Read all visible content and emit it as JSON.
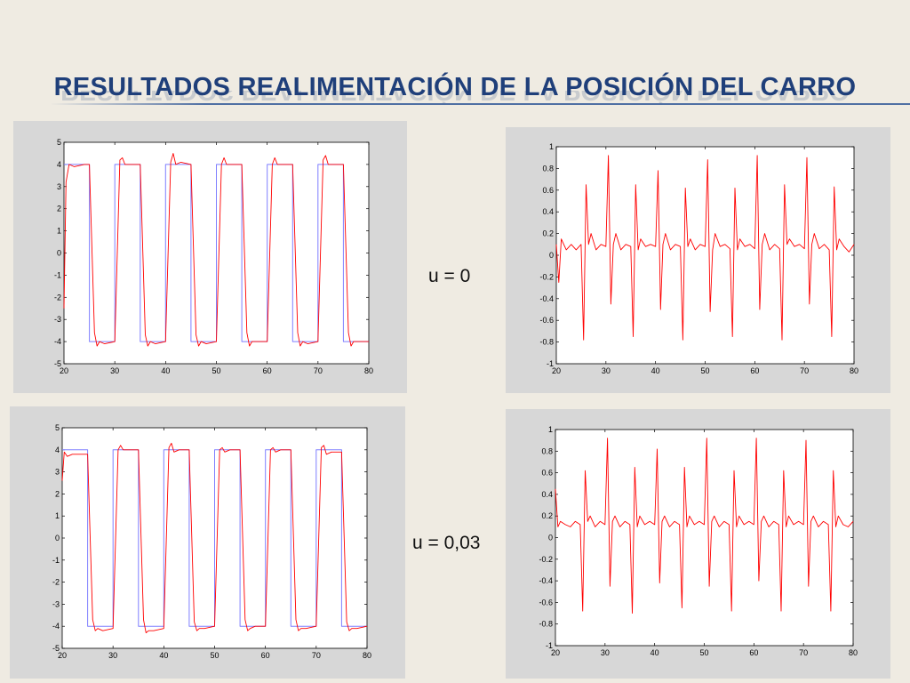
{
  "slide": {
    "title": "RESULTADOS REALIMENTACIÓN DE LA POSICIÓN DEL CARRO",
    "label_top": "u = 0",
    "label_bottom": "u = 0,03"
  },
  "colors": {
    "title": "#1f3f7a",
    "reference": "#7f7fff",
    "response": "#ff0000",
    "panel": "#d7d7d7"
  },
  "chart_data": [
    {
      "id": "pos-u0",
      "type": "line",
      "xlim": [
        20,
        80
      ],
      "ylim": [
        -5,
        5
      ],
      "xticks": [
        20,
        30,
        40,
        50,
        60,
        70,
        80
      ],
      "yticks": [
        5,
        4,
        3,
        2,
        1,
        0,
        -1,
        -2,
        -3,
        -4,
        -5
      ],
      "series": [
        {
          "kind": "reference",
          "color": "#7f7fff",
          "x": [
            20,
            25,
            25,
            30,
            30,
            35,
            35,
            40,
            40,
            45,
            45,
            50,
            50,
            55,
            55,
            60,
            60,
            65,
            65,
            70,
            70,
            75,
            75,
            80
          ],
          "y": [
            4,
            4,
            -4,
            -4,
            4,
            4,
            -4,
            -4,
            4,
            4,
            -4,
            -4,
            4,
            4,
            -4,
            -4,
            4,
            4,
            -4,
            -4,
            4,
            4,
            -4,
            -4
          ]
        },
        {
          "kind": "response",
          "color": "#ff0000",
          "x": [
            20,
            20.4,
            21,
            22,
            24,
            25,
            26,
            26.5,
            27,
            28,
            30,
            31,
            31.5,
            32,
            33,
            35,
            36,
            36.5,
            37,
            38,
            40,
            41,
            41.5,
            42,
            43,
            45,
            46,
            46.5,
            47,
            48,
            50,
            51,
            51.5,
            52,
            53,
            55,
            56,
            56.5,
            57,
            58,
            60,
            61,
            61.5,
            62,
            63,
            65,
            66,
            66.5,
            67,
            68,
            70,
            71,
            71.5,
            72,
            73,
            75,
            76,
            76.5,
            77,
            78,
            80
          ],
          "y": [
            -2.5,
            3.2,
            4,
            3.9,
            4,
            4,
            -3.6,
            -4.2,
            -4,
            -4.1,
            -4,
            4.2,
            4.3,
            4,
            4,
            4,
            -3.7,
            -4.2,
            -4,
            -4.1,
            -4,
            4.1,
            4.5,
            4,
            4.1,
            4,
            -3.7,
            -4.2,
            -4,
            -4.1,
            -4,
            4,
            4.3,
            4,
            4,
            4,
            -3.6,
            -4.2,
            -4,
            -4,
            -4,
            4,
            4.3,
            4,
            4,
            4,
            -3.6,
            -4.2,
            -4,
            -4.1,
            -4,
            4.2,
            4.4,
            4,
            4,
            4,
            -3.6,
            -4.2,
            -4,
            -4,
            -4
          ]
        }
      ]
    },
    {
      "id": "force-u0",
      "type": "line",
      "xlim": [
        20,
        80
      ],
      "ylim": [
        -1,
        1
      ],
      "xticks": [
        20,
        30,
        40,
        50,
        60,
        70,
        80
      ],
      "yticks": [
        1,
        0.8,
        0.6,
        0.4,
        0.2,
        0,
        -0.2,
        -0.4,
        -0.6,
        -0.8,
        -1
      ],
      "series": [
        {
          "kind": "response",
          "color": "#ff0000",
          "x": [
            20,
            20.5,
            21,
            22,
            23,
            24,
            25,
            25.5,
            26,
            26.5,
            27,
            28,
            29,
            30,
            30.5,
            31,
            31.5,
            32,
            33,
            34,
            35,
            35.5,
            36,
            36.5,
            37,
            38,
            39,
            40,
            40.5,
            41,
            41.5,
            42,
            43,
            44,
            45,
            45.5,
            46,
            46.5,
            47,
            48,
            49,
            50,
            50.5,
            51,
            51.5,
            52,
            53,
            54,
            55,
            55.5,
            56,
            56.5,
            57,
            58,
            59,
            60,
            60.5,
            61,
            61.5,
            62,
            63,
            64,
            65,
            65.5,
            66,
            66.5,
            67,
            68,
            69,
            70,
            70.5,
            71,
            71.5,
            72,
            73,
            74,
            75,
            75.5,
            76,
            76.5,
            77,
            78,
            79,
            80
          ],
          "y": [
            0.1,
            -0.25,
            0.15,
            0.05,
            0.1,
            0.05,
            0.1,
            -0.78,
            0.65,
            0.1,
            0.2,
            0.05,
            0.1,
            0.08,
            0.92,
            -0.45,
            0.1,
            0.2,
            0.05,
            0.1,
            0.08,
            -0.75,
            0.65,
            0.05,
            0.15,
            0.08,
            0.1,
            0.08,
            0.78,
            -0.5,
            0.1,
            0.2,
            0.05,
            0.1,
            0.08,
            -0.78,
            0.62,
            0.08,
            0.15,
            0.05,
            0.1,
            0.08,
            0.88,
            -0.52,
            0.05,
            0.2,
            0.08,
            0.1,
            0.06,
            -0.75,
            0.62,
            0.05,
            0.15,
            0.08,
            0.1,
            0.06,
            0.92,
            -0.5,
            0.1,
            0.2,
            0.05,
            0.1,
            0.06,
            -0.78,
            0.65,
            0.1,
            0.15,
            0.08,
            0.1,
            0.06,
            0.9,
            -0.45,
            0.1,
            0.2,
            0.06,
            0.1,
            0.05,
            -0.75,
            0.63,
            0.05,
            0.15,
            0.08,
            0.03,
            0.1
          ]
        }
      ]
    },
    {
      "id": "pos-u003",
      "type": "line",
      "xlim": [
        20,
        80
      ],
      "ylim": [
        -5,
        5
      ],
      "xticks": [
        20,
        30,
        40,
        50,
        60,
        70,
        80
      ],
      "yticks": [
        5,
        4,
        3,
        2,
        1,
        0,
        -1,
        -2,
        -3,
        -4,
        -5
      ],
      "series": [
        {
          "kind": "reference",
          "color": "#7f7fff",
          "x": [
            20,
            25,
            25,
            30,
            30,
            35,
            35,
            40,
            40,
            45,
            45,
            50,
            50,
            55,
            55,
            60,
            60,
            65,
            65,
            70,
            70,
            75,
            75,
            80
          ],
          "y": [
            4,
            4,
            -4,
            -4,
            4,
            4,
            -4,
            -4,
            4,
            4,
            -4,
            -4,
            4,
            4,
            -4,
            -4,
            4,
            4,
            -4,
            -4,
            4,
            4,
            -4,
            -4
          ]
        },
        {
          "kind": "response",
          "color": "#ff0000",
          "x": [
            20,
            20.4,
            21,
            22,
            24,
            25,
            26,
            26.5,
            27,
            28,
            30,
            31,
            31.5,
            32,
            33,
            35,
            36,
            36.5,
            37,
            38,
            40,
            41,
            41.5,
            42,
            43,
            45,
            46,
            46.5,
            47,
            48,
            50,
            51,
            51.5,
            52,
            53,
            55,
            56,
            56.5,
            57,
            58,
            60,
            61,
            61.5,
            62,
            63,
            65,
            66,
            66.5,
            67,
            68,
            70,
            71,
            71.5,
            72,
            73,
            75,
            76,
            76.5,
            77,
            78,
            80
          ],
          "y": [
            2.6,
            3.9,
            3.7,
            3.8,
            3.8,
            3.8,
            -3.7,
            -4.2,
            -4.1,
            -4.2,
            -4.1,
            4,
            4.2,
            4,
            4,
            4,
            -3.7,
            -4.3,
            -4.2,
            -4.2,
            -4.1,
            4.1,
            4.3,
            3.9,
            4,
            4,
            -3.8,
            -4.2,
            -4.1,
            -4.1,
            -4,
            4,
            4.1,
            3.9,
            4,
            4,
            -3.7,
            -4.2,
            -4.1,
            -4,
            -4,
            4,
            4.1,
            3.9,
            4,
            4,
            -3.7,
            -4.2,
            -4.1,
            -4.1,
            -4,
            4.1,
            4.2,
            3.8,
            3.9,
            3.9,
            -3.8,
            -4.2,
            -4.1,
            -4.1,
            -4
          ]
        }
      ]
    },
    {
      "id": "force-u003",
      "type": "line",
      "xlim": [
        20,
        80
      ],
      "ylim": [
        -1,
        1
      ],
      "xticks": [
        20,
        30,
        40,
        50,
        60,
        70,
        80
      ],
      "yticks": [
        1,
        0.8,
        0.6,
        0.4,
        0.2,
        0,
        -0.2,
        -0.4,
        -0.6,
        -0.8,
        -1
      ],
      "series": [
        {
          "kind": "response",
          "color": "#ff0000",
          "x": [
            20,
            20.5,
            21,
            22,
            23,
            24,
            25,
            25.5,
            26,
            26.5,
            27,
            28,
            29,
            30,
            30.5,
            31,
            31.5,
            32,
            33,
            34,
            35,
            35.5,
            36,
            36.5,
            37,
            38,
            39,
            40,
            40.5,
            41,
            41.5,
            42,
            43,
            44,
            45,
            45.5,
            46,
            46.5,
            47,
            48,
            49,
            50,
            50.5,
            51,
            51.5,
            52,
            53,
            54,
            55,
            55.5,
            56,
            56.5,
            57,
            58,
            59,
            60,
            60.5,
            61,
            61.5,
            62,
            63,
            64,
            65,
            65.5,
            66,
            66.5,
            67,
            68,
            69,
            70,
            70.5,
            71,
            71.5,
            72,
            73,
            74,
            75,
            75.5,
            76,
            76.5,
            77,
            78,
            79,
            80
          ],
          "y": [
            0.45,
            0.1,
            0.15,
            0.12,
            0.1,
            0.15,
            0.12,
            -0.68,
            0.62,
            0.15,
            0.2,
            0.1,
            0.15,
            0.12,
            0.92,
            -0.45,
            0.15,
            0.2,
            0.1,
            0.15,
            0.12,
            -0.7,
            0.65,
            0.1,
            0.2,
            0.12,
            0.15,
            0.12,
            0.82,
            -0.42,
            0.15,
            0.2,
            0.1,
            0.15,
            0.12,
            -0.65,
            0.65,
            0.1,
            0.2,
            0.12,
            0.15,
            0.12,
            0.92,
            -0.45,
            0.15,
            0.2,
            0.1,
            0.15,
            0.12,
            -0.68,
            0.62,
            0.1,
            0.2,
            0.12,
            0.15,
            0.12,
            0.92,
            -0.4,
            0.15,
            0.2,
            0.1,
            0.15,
            0.12,
            -0.68,
            0.62,
            0.1,
            0.2,
            0.12,
            0.15,
            0.12,
            0.9,
            -0.45,
            0.15,
            0.2,
            0.1,
            0.15,
            0.12,
            -0.68,
            0.62,
            0.1,
            0.2,
            0.12,
            0.1,
            0.15
          ]
        }
      ]
    }
  ]
}
